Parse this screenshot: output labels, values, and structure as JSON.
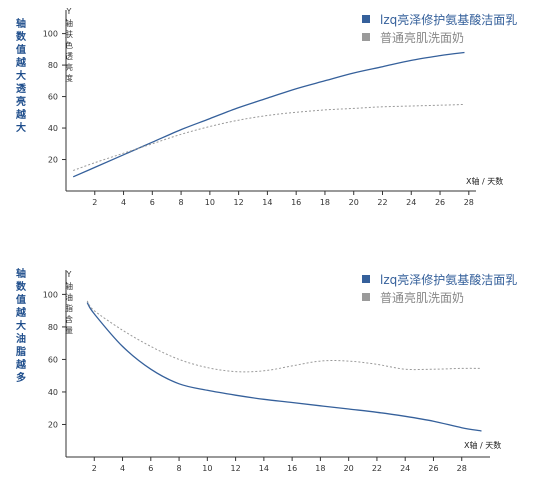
{
  "colors": {
    "series1": "#35609b",
    "series2": "#9a9a9a",
    "note": "#1f4e8c"
  },
  "chart_data": [
    {
      "type": "line",
      "side_note": "轴数值越大透亮越大",
      "ylabel_y": "Y",
      "ylabel": "轴肤色透亮度",
      "xlabel": "X轴 / 天数",
      "xlim": [
        0,
        28.5
      ],
      "ylim": [
        0,
        115
      ],
      "xticks": [
        2,
        4,
        6,
        8,
        10,
        12,
        14,
        16,
        18,
        20,
        22,
        24,
        26,
        28
      ],
      "yticks": [
        20,
        40,
        60,
        80,
        100
      ],
      "grid": false,
      "legend_position": "top-right",
      "series": [
        {
          "name": "lzq亮泽修护氨基酸洁面乳",
          "color": "#35609b",
          "style": "solid",
          "x": [
            0.5,
            2,
            4,
            6,
            8,
            10,
            12,
            14,
            16,
            18,
            20,
            22,
            24,
            26,
            27.7
          ],
          "y": [
            9,
            15,
            23,
            31,
            39,
            46,
            53,
            59,
            65,
            70,
            75,
            79,
            83,
            86,
            88
          ]
        },
        {
          "name": "普通亮肌洗面奶",
          "color": "#9a9a9a",
          "style": "dashed",
          "x": [
            0.5,
            2,
            4,
            6,
            8,
            10,
            12,
            14,
            16,
            18,
            20,
            22,
            24,
            26,
            27.7
          ],
          "y": [
            13,
            18,
            24,
            30,
            36,
            41,
            45,
            48,
            50,
            51.5,
            52.5,
            53.5,
            54,
            54.5,
            55
          ]
        }
      ]
    },
    {
      "type": "line",
      "side_note": "轴数值越大油脂越多",
      "ylabel_y": "Y",
      "ylabel": "轴油脂含量",
      "xlabel": "X轴 / 天数",
      "xlim": [
        0,
        30
      ],
      "ylim": [
        0,
        115
      ],
      "xticks": [
        2,
        4,
        6,
        8,
        10,
        12,
        14,
        16,
        18,
        20,
        22,
        24,
        26,
        28
      ],
      "yticks": [
        20,
        40,
        60,
        80,
        100
      ],
      "grid": false,
      "legend_position": "top-right",
      "series": [
        {
          "name": "lzq亮泽修护氨基酸洁面乳",
          "color": "#35609b",
          "style": "solid",
          "x": [
            1.5,
            2,
            4,
            6,
            8,
            10,
            12,
            14,
            16,
            18,
            20,
            22,
            24,
            26,
            28,
            29.4
          ],
          "y": [
            95,
            88,
            68,
            54,
            45,
            41,
            38,
            35.5,
            33.5,
            31.5,
            29.5,
            27.5,
            25,
            22,
            18,
            16
          ]
        },
        {
          "name": "普通亮肌洗面奶",
          "color": "#9a9a9a",
          "style": "dashed",
          "x": [
            1.5,
            2,
            4,
            6,
            8,
            10,
            12,
            14,
            16,
            18,
            20,
            22,
            24,
            26,
            28,
            29.4
          ],
          "y": [
            96,
            90,
            78,
            68,
            60,
            55,
            52.5,
            53,
            56,
            59,
            59,
            57,
            54,
            54,
            54.5,
            54.5
          ]
        }
      ]
    }
  ]
}
